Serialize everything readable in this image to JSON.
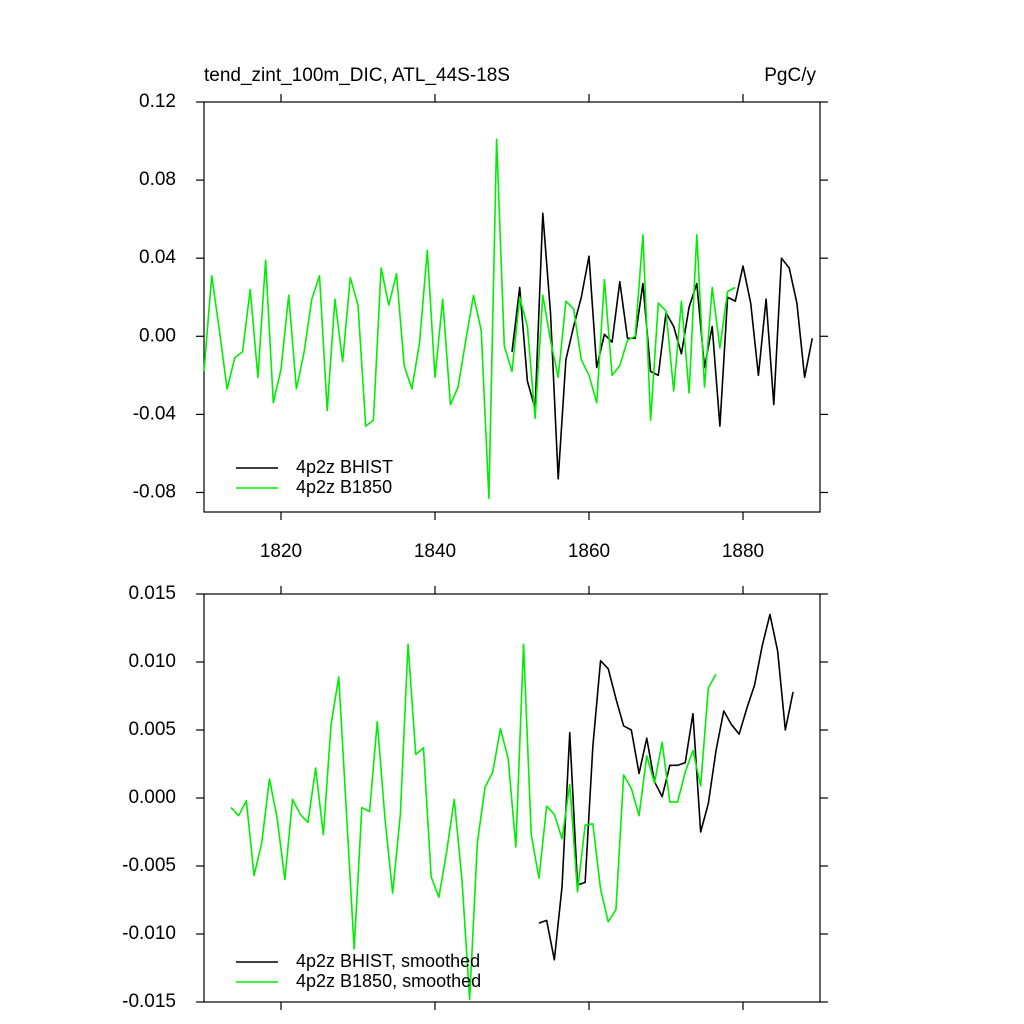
{
  "chart_data": [
    {
      "type": "line",
      "title": "tend_zint_100m_DIC, ATL_44S-18S",
      "units_label": "PgC/y",
      "x": [
        1810,
        1811,
        1812,
        1813,
        1814,
        1815,
        1816,
        1817,
        1818,
        1819,
        1820,
        1821,
        1822,
        1823,
        1824,
        1825,
        1826,
        1827,
        1828,
        1829,
        1830,
        1831,
        1832,
        1833,
        1834,
        1835,
        1836,
        1837,
        1838,
        1839,
        1840,
        1841,
        1842,
        1843,
        1844,
        1845,
        1846,
        1847,
        1848,
        1849,
        1850,
        1851,
        1852,
        1853,
        1854,
        1855,
        1856,
        1857,
        1858,
        1859,
        1860,
        1861,
        1862,
        1863,
        1864,
        1865,
        1866,
        1867,
        1868,
        1869,
        1870,
        1871,
        1872,
        1873,
        1874,
        1875,
        1876,
        1877,
        1878,
        1879,
        1880,
        1881,
        1882,
        1883,
        1884,
        1885,
        1886,
        1887,
        1888,
        1889
      ],
      "series": [
        {
          "name": "4p2z BHIST",
          "color": "#000000",
          "values": [
            null,
            null,
            null,
            null,
            null,
            null,
            null,
            null,
            null,
            null,
            null,
            null,
            null,
            null,
            null,
            null,
            null,
            null,
            null,
            null,
            null,
            null,
            null,
            null,
            null,
            null,
            null,
            null,
            null,
            null,
            null,
            null,
            null,
            null,
            null,
            null,
            null,
            null,
            null,
            null,
            -0.008,
            0.025,
            -0.023,
            -0.037,
            0.063,
            0.012,
            -0.073,
            -0.012,
            0.005,
            0.02,
            0.041,
            -0.016,
            0.001,
            -0.003,
            0.028,
            -0.001,
            -0.001,
            0.027,
            -0.018,
            -0.02,
            0.012,
            0.005,
            -0.009,
            0.015,
            0.027,
            -0.016,
            0.005,
            -0.046,
            0.02,
            0.018,
            0.036,
            0.017,
            -0.02,
            0.019,
            -0.035,
            0.04,
            0.035,
            0.017,
            -0.021,
            -0.001
          ]
        },
        {
          "name": "4p2z B1850",
          "color": "#00ee00",
          "values": [
            -0.018,
            0.031,
            0.003,
            -0.027,
            -0.011,
            -0.008,
            0.024,
            -0.021,
            0.039,
            -0.034,
            -0.017,
            0.021,
            -0.027,
            -0.008,
            0.019,
            0.031,
            -0.038,
            0.019,
            -0.013,
            0.03,
            0.016,
            -0.046,
            -0.043,
            0.035,
            0.016,
            0.032,
            -0.015,
            -0.027,
            -0.003,
            0.044,
            -0.021,
            0.019,
            -0.035,
            -0.026,
            -0.002,
            0.021,
            0.003,
            -0.083,
            0.101,
            -0.005,
            -0.018,
            0.02,
            0.005,
            -0.042,
            0.021,
            -0.002,
            -0.021,
            0.018,
            0.014,
            -0.012,
            -0.02,
            -0.034,
            0.029,
            -0.02,
            -0.015,
            -0.002,
            0.0,
            0.052,
            -0.043,
            0.017,
            0.013,
            -0.028,
            0.018,
            -0.029,
            0.052,
            -0.026,
            0.025,
            -0.006,
            0.023,
            0.025,
            null,
            null,
            null,
            null,
            null,
            null,
            null,
            null,
            null,
            null
          ]
        }
      ],
      "xlim": [
        1810,
        1890
      ],
      "xticks": [
        1820,
        1840,
        1860,
        1880
      ],
      "ylim": [
        -0.09,
        0.12
      ],
      "yticks": [
        0.12,
        0.08,
        0.04,
        {
          "value": 0,
          "label": "0.00"
        },
        -0.04,
        -0.08
      ],
      "legend": "lower left"
    },
    {
      "type": "line",
      "x": [
        1813.5,
        1814.5,
        1815.5,
        1816.5,
        1817.5,
        1818.5,
        1819.5,
        1820.5,
        1821.5,
        1822.5,
        1823.5,
        1824.5,
        1825.5,
        1826.5,
        1827.5,
        1828.5,
        1829.5,
        1830.5,
        1831.5,
        1832.5,
        1833.5,
        1834.5,
        1835.5,
        1836.5,
        1837.5,
        1838.5,
        1839.5,
        1840.5,
        1841.5,
        1842.5,
        1843.5,
        1844.5,
        1845.5,
        1846.5,
        1847.5,
        1848.5,
        1849.5,
        1850.5,
        1851.5,
        1852.5,
        1853.5,
        1854.5,
        1855.5,
        1856.5,
        1857.5,
        1858.5,
        1859.5,
        1860.5,
        1861.5,
        1862.5,
        1863.5,
        1864.5,
        1865.5,
        1866.5,
        1867.5,
        1868.5,
        1869.5,
        1870.5,
        1871.5,
        1872.5,
        1873.5,
        1874.5,
        1875.5,
        1876.5,
        1877.5,
        1878.5,
        1879.5,
        1880.5,
        1881.5,
        1882.5,
        1883.5,
        1884.5,
        1885.5,
        1886.5
      ],
      "series": [
        {
          "name": "4p2z BHIST, smoothed",
          "color": "#000000",
          "values": [
            null,
            null,
            null,
            null,
            null,
            null,
            null,
            null,
            null,
            null,
            null,
            null,
            null,
            null,
            null,
            null,
            null,
            null,
            null,
            null,
            null,
            null,
            null,
            null,
            null,
            null,
            null,
            null,
            null,
            null,
            null,
            null,
            null,
            null,
            null,
            null,
            null,
            null,
            null,
            null,
            -0.0092,
            -0.009,
            -0.0119,
            -0.0065,
            0.0048,
            -0.0064,
            -0.0062,
            0.0038,
            0.0101,
            0.0095,
            0.0073,
            0.0053,
            0.005,
            0.0018,
            0.0044,
            0.0012,
            0.0001,
            0.0024,
            0.0024,
            0.0026,
            0.0062,
            -0.0025,
            -0.0004,
            0.0035,
            0.0064,
            0.0054,
            0.0047,
            0.0066,
            0.0083,
            0.0112,
            0.0135,
            0.0108,
            0.005,
            0.0078
          ]
        },
        {
          "name": "4p2z B1850, smoothed",
          "color": "#00ee00",
          "values": [
            -0.0007,
            -0.0013,
            -0.0002,
            -0.0057,
            -0.0033,
            0.0014,
            -0.0015,
            -0.006,
            -0.0001,
            -0.0012,
            -0.0018,
            0.0022,
            -0.0027,
            0.0054,
            0.0089,
            -0.0011,
            -0.0111,
            -0.0007,
            -0.001,
            0.0056,
            -0.0015,
            -0.007,
            -0.0012,
            0.0113,
            0.0032,
            0.0037,
            -0.0058,
            -0.0073,
            -0.004,
            -0.0001,
            -0.006,
            -0.0148,
            -0.0033,
            0.0008,
            0.0019,
            0.0051,
            0.0029,
            -0.0036,
            0.0113,
            -0.0027,
            -0.0059,
            -0.0006,
            -0.0012,
            -0.003,
            0.001,
            -0.0069,
            -0.002,
            -0.0019,
            -0.0067,
            -0.0091,
            -0.0082,
            0.0017,
            0.0007,
            -0.0013,
            0.0031,
            0.0011,
            0.0041,
            -0.0003,
            -0.0003,
            0.0019,
            0.0035,
            0.0009,
            0.0081,
            0.0091,
            null,
            null,
            null,
            null,
            null,
            null,
            null,
            null,
            null,
            null
          ]
        }
      ],
      "xlim": [
        1810,
        1890
      ],
      "xticks": [
        1820,
        1840,
        1860,
        1880
      ],
      "ylim": [
        -0.015,
        0.015
      ],
      "yticks": [
        0.015,
        {
          "value": 0.01,
          "label": "0.010"
        },
        0.005,
        {
          "value": 0,
          "label": "0.000"
        },
        -0.005,
        {
          "value": -0.01,
          "label": "-0.010"
        },
        -0.015
      ],
      "legend": "lower left"
    }
  ]
}
